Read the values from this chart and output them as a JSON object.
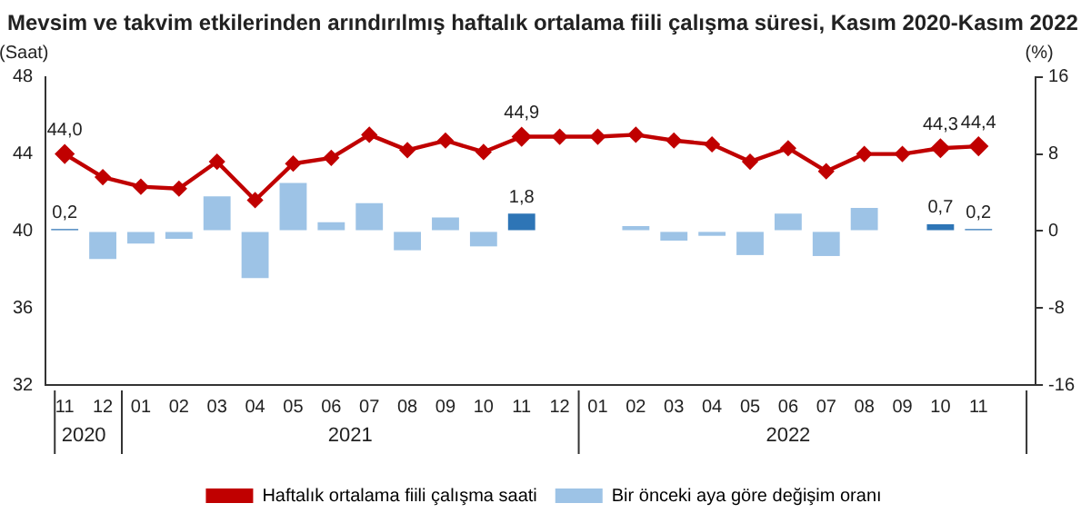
{
  "chart_data": {
    "type": "bar",
    "title": "Mevsim ve takvim etkilerinden arındırılmış haftalık ortalama fiili çalışma süresi, Kasım 2020-Kasım 2022",
    "ylabel": "(Saat)",
    "y2label": "(%)",
    "categories": [
      "11",
      "12",
      "01",
      "02",
      "03",
      "04",
      "05",
      "06",
      "07",
      "08",
      "09",
      "10",
      "11",
      "12",
      "01",
      "02",
      "03",
      "04",
      "05",
      "06",
      "07",
      "08",
      "09",
      "10",
      "11",
      null
    ],
    "annotations": [
      "2020",
      "2021",
      "2022"
    ],
    "series": [
      {
        "name": "Haftalık ortalama fiili çalışma saati",
        "type": "line",
        "color": "#c00000",
        "marker": "diamond",
        "values": [
          44.0,
          42.8,
          42.3,
          42.2,
          43.6,
          41.6,
          43.5,
          43.8,
          45.0,
          44.2,
          44.7,
          44.1,
          44.9,
          44.9,
          44.9,
          45.0,
          44.7,
          44.5,
          43.6,
          44.3,
          43.1,
          44.0,
          44.0,
          44.3,
          44.4,
          null
        ],
        "value_labels": [
          "44,0",
          null,
          null,
          null,
          null,
          null,
          null,
          null,
          null,
          null,
          null,
          null,
          "44,9",
          null,
          null,
          null,
          null,
          null,
          null,
          null,
          null,
          null,
          null,
          "44,3",
          "44,4",
          null
        ]
      },
      {
        "name": "Bir önceki aya göre değişim oranı",
        "axis": "y2",
        "color": "#9dc3e6",
        "colors": [
          "#2e75b6",
          "#9dc3e6",
          "#9dc3e6",
          "#9dc3e6",
          "#9dc3e6",
          "#9dc3e6",
          "#9dc3e6",
          "#9dc3e6",
          "#9dc3e6",
          "#9dc3e6",
          "#9dc3e6",
          "#9dc3e6",
          "#2e75b6",
          "#9dc3e6",
          "#9dc3e6",
          "#9dc3e6",
          "#9dc3e6",
          "#9dc3e6",
          "#9dc3e6",
          "#9dc3e6",
          "#9dc3e6",
          "#9dc3e6",
          "#9dc3e6",
          "#2e75b6",
          "#2e75b6",
          "#9dc3e6"
        ],
        "values": [
          0.2,
          -2.9,
          -1.3,
          -0.8,
          3.6,
          -4.9,
          5.0,
          0.9,
          2.9,
          -2.0,
          1.4,
          -1.6,
          1.8,
          0,
          0,
          0.5,
          -1.0,
          -0.5,
          -2.5,
          1.8,
          -2.6,
          2.4,
          0,
          0.7,
          0.2,
          null
        ],
        "value_labels": [
          "0,2",
          null,
          null,
          null,
          null,
          null,
          null,
          null,
          null,
          null,
          null,
          null,
          "1,8",
          null,
          null,
          null,
          null,
          null,
          null,
          null,
          null,
          null,
          null,
          "0,7",
          "0,2",
          null
        ]
      }
    ],
    "ylim": [
      32,
      48
    ],
    "yticks": [
      32,
      36,
      40,
      44,
      48
    ],
    "y2lim": [
      -16,
      16
    ],
    "y2ticks": [
      -16,
      -8,
      0,
      8,
      16
    ],
    "grid": false,
    "legend": "bottom"
  }
}
